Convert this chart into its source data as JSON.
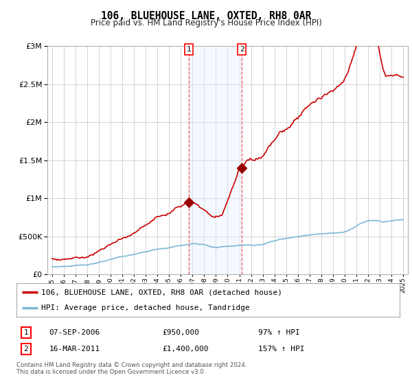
{
  "title": "106, BLUEHOUSE LANE, OXTED, RH8 0AR",
  "subtitle": "Price paid vs. HM Land Registry's House Price Index (HPI)",
  "background_color": "#ffffff",
  "plot_bg_color": "#ffffff",
  "grid_color": "#cccccc",
  "sale1_date_label": "07-SEP-2006",
  "sale1_price": 950000,
  "sale1_hpi": "97% ↑ HPI",
  "sale1_num": "1",
  "sale1_year": 2006.69,
  "sale2_date_label": "16-MAR-2011",
  "sale2_price": 1400000,
  "sale2_hpi": "157% ↑ HPI",
  "sale2_num": "2",
  "sale2_year": 2011.21,
  "legend_line1": "106, BLUEHOUSE LANE, OXTED, RH8 0AR (detached house)",
  "legend_line2": "HPI: Average price, detached house, Tandridge",
  "footer": "Contains HM Land Registry data © Crown copyright and database right 2024.\nThis data is licensed under the Open Government Licence v3.0.",
  "hpi_color": "#7bb8d4",
  "price_color": "#cc0000",
  "sale_marker_color": "#990000",
  "shade_color": "#ddeeff",
  "dashed_color": "#ee4444",
  "ylim_max": 3000000,
  "ylim_min": 0,
  "xmin": 1994.6,
  "xmax": 2025.4
}
